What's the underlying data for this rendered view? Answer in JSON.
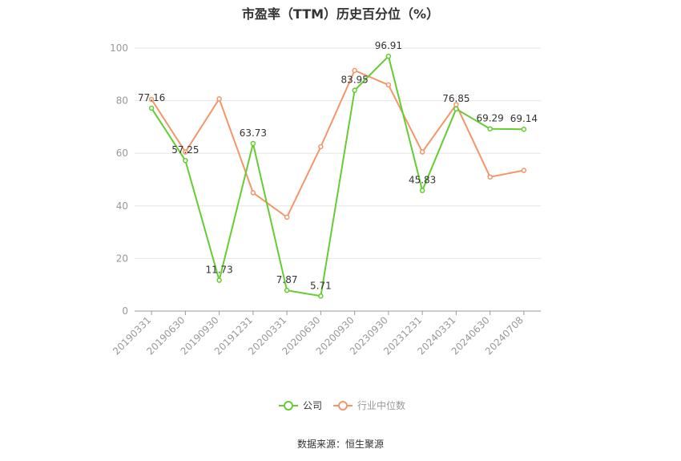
{
  "title": "市盈率（TTM）历史百分位（%）",
  "source": "数据来源：恒生聚源",
  "colors": {
    "company": "#66CC33",
    "industry": "#F4956A"
  },
  "chart_data": {
    "type": "line",
    "title": "市盈率（TTM）历史百分位（%）",
    "categories": [
      "20190331",
      "20190630",
      "20190930",
      "20191231",
      "20200331",
      "20200630",
      "20200930",
      "20230930",
      "20231231",
      "20240331",
      "20240630",
      "20240708"
    ],
    "ylim": [
      0,
      100
    ],
    "yticks": [
      0,
      20,
      40,
      60,
      80,
      100
    ],
    "grid": true,
    "legend_position": "bottom",
    "series": [
      {
        "name": "公司",
        "values": [
          77.16,
          57.25,
          11.73,
          63.73,
          7.87,
          5.71,
          83.95,
          96.91,
          45.83,
          76.85,
          69.29,
          69.14
        ],
        "labels": [
          "77.16",
          "57.25",
          "11.73",
          "63.73",
          "7.87",
          "5.71",
          "83.95",
          "96.91",
          "45.83",
          "76.85",
          "69.29",
          "69.14"
        ]
      },
      {
        "name": "行业中位数",
        "values": [
          80.5,
          60.5,
          80.7,
          45.0,
          35.7,
          62.5,
          91.5,
          86.0,
          60.5,
          78.5,
          51.0,
          53.5
        ]
      }
    ]
  }
}
